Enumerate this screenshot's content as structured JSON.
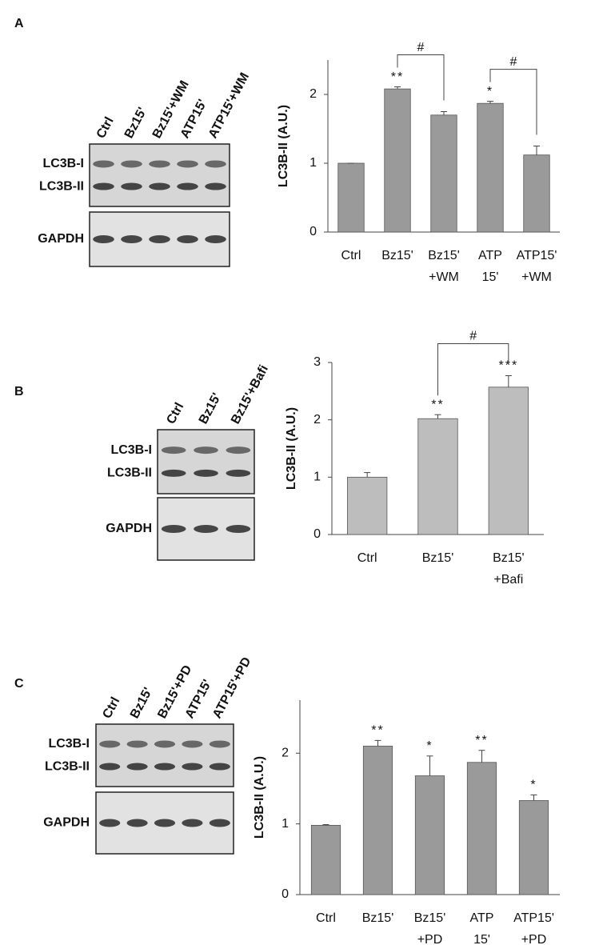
{
  "chart_data": [
    {
      "type": "bar",
      "panel": "A",
      "ylabel": "LC3B-II (A.U.)",
      "blot": {
        "lanes": [
          "Ctrl",
          "Bz15'",
          "Bz15'+WM",
          "ATP15'",
          "ATP15'+WM"
        ],
        "rows": [
          "LC3B-I",
          "LC3B-II",
          "GAPDH"
        ]
      },
      "categories": [
        [
          "Ctrl"
        ],
        [
          "Bz15'"
        ],
        [
          "Bz15'",
          "+WM"
        ],
        [
          "ATP",
          "15'"
        ],
        [
          "ATP15'",
          "+WM"
        ]
      ],
      "values": [
        1.0,
        2.08,
        1.7,
        1.87,
        1.12
      ],
      "errors": [
        0.0,
        0.03,
        0.05,
        0.03,
        0.13
      ],
      "significance": [
        null,
        "**",
        null,
        "*",
        null
      ],
      "comparisons": [
        {
          "from": 1,
          "to": 2,
          "label": "#"
        },
        {
          "from": 3,
          "to": 4,
          "label": "#"
        }
      ],
      "color": "#9a9a9a",
      "ylim": [
        0,
        2.5
      ],
      "yticks": [
        0,
        1,
        2
      ]
    },
    {
      "type": "bar",
      "panel": "B",
      "ylabel": "LC3B-II (A.U.)",
      "blot": {
        "lanes": [
          "Ctrl",
          "Bz15'",
          "Bz15'+Bafi"
        ],
        "rows": [
          "LC3B-I",
          "LC3B-II",
          "GAPDH"
        ]
      },
      "categories": [
        [
          "Ctrl"
        ],
        [
          "Bz15'"
        ],
        [
          "Bz15'",
          "+Bafi"
        ]
      ],
      "values": [
        1.0,
        2.02,
        2.57
      ],
      "errors": [
        0.08,
        0.07,
        0.2
      ],
      "significance": [
        null,
        "**",
        "***"
      ],
      "comparisons": [
        {
          "from": 1,
          "to": 2,
          "label": "#"
        }
      ],
      "color": "#bdbdbd",
      "ylim": [
        0,
        3
      ],
      "yticks": [
        0,
        1,
        2,
        3
      ]
    },
    {
      "type": "bar",
      "panel": "C",
      "ylabel": "LC3B-II (A.U.)",
      "blot": {
        "lanes": [
          "Ctrl",
          "Bz15'",
          "Bz15'+PD",
          "ATP15'",
          "ATP15'+PD"
        ],
        "rows": [
          "LC3B-I",
          "LC3B-II",
          "GAPDH"
        ]
      },
      "categories": [
        [
          "Ctrl"
        ],
        [
          "Bz15'"
        ],
        [
          "Bz15'",
          "+PD"
        ],
        [
          "ATP",
          "15'"
        ],
        [
          "ATP15'",
          "+PD"
        ]
      ],
      "values": [
        0.98,
        2.1,
        1.68,
        1.87,
        1.33
      ],
      "errors": [
        0.01,
        0.08,
        0.28,
        0.17,
        0.08
      ],
      "significance": [
        null,
        "**",
        "*",
        "**",
        "*"
      ],
      "comparisons": [],
      "color": "#9a9a9a",
      "ylim": [
        0,
        2.75
      ],
      "yticks": [
        0,
        1,
        2
      ]
    }
  ]
}
